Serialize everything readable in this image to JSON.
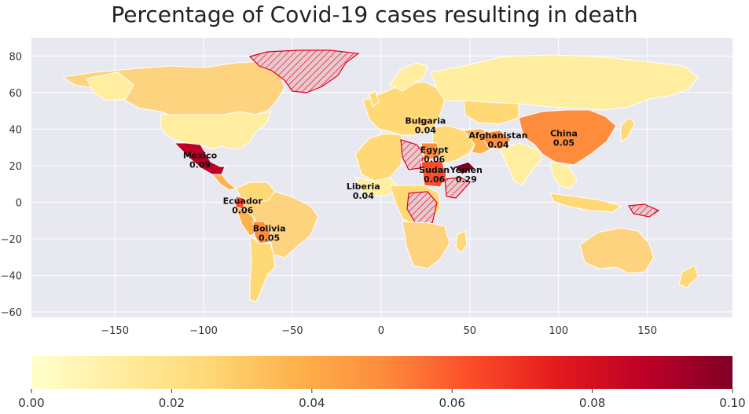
{
  "title": "Percentage of Covid-19 cases resulting in death",
  "map": {
    "background_color": "#e8e8f0",
    "land_base_color": "#fed37f",
    "missing_data_stroke": "#e0001b",
    "missing_data_fill": "#e9c9ce",
    "x_ticks": [
      -150,
      -100,
      -50,
      0,
      50,
      100,
      150
    ],
    "y_ticks": [
      80,
      60,
      40,
      20,
      0,
      -20,
      -40,
      -60
    ],
    "xlim": [
      -197,
      198
    ],
    "ylim": [
      -63,
      90
    ]
  },
  "colorbar": {
    "colors": [
      "#ffffcc",
      "#ffeda0",
      "#fed976",
      "#feb24c",
      "#fd8d3c",
      "#fc4e2a",
      "#e31a1c",
      "#bd0026",
      "#800026"
    ],
    "ticks": [
      "0.00",
      "0.02",
      "0.04",
      "0.06",
      "0.08",
      "0.10"
    ],
    "range": [
      0,
      0.1
    ]
  },
  "annotations": [
    {
      "name": "Mexico",
      "value": "0.09",
      "lon": -102,
      "lat": 24
    },
    {
      "name": "Bulgaria",
      "value": "0.04",
      "lon": 25,
      "lat": 43
    },
    {
      "name": "Afghanistan",
      "value": "0.04",
      "lon": 66,
      "lat": 35
    },
    {
      "name": "China",
      "value": "0.05",
      "lon": 103,
      "lat": 36
    },
    {
      "name": "Egypt",
      "value": "0.06",
      "lon": 30,
      "lat": 27
    },
    {
      "name": "Sudan",
      "value": "0.06",
      "lon": 30,
      "lat": 16
    },
    {
      "name": "Yemen",
      "value": "0.29",
      "lon": 48,
      "lat": 16
    },
    {
      "name": "Liberia",
      "value": "0.04",
      "lon": -10,
      "lat": 7
    },
    {
      "name": "Ecuador",
      "value": "0.06",
      "lon": -78,
      "lat": -1
    },
    {
      "name": "Bolivia",
      "value": "0.05",
      "lon": -63,
      "lat": -16
    }
  ]
}
